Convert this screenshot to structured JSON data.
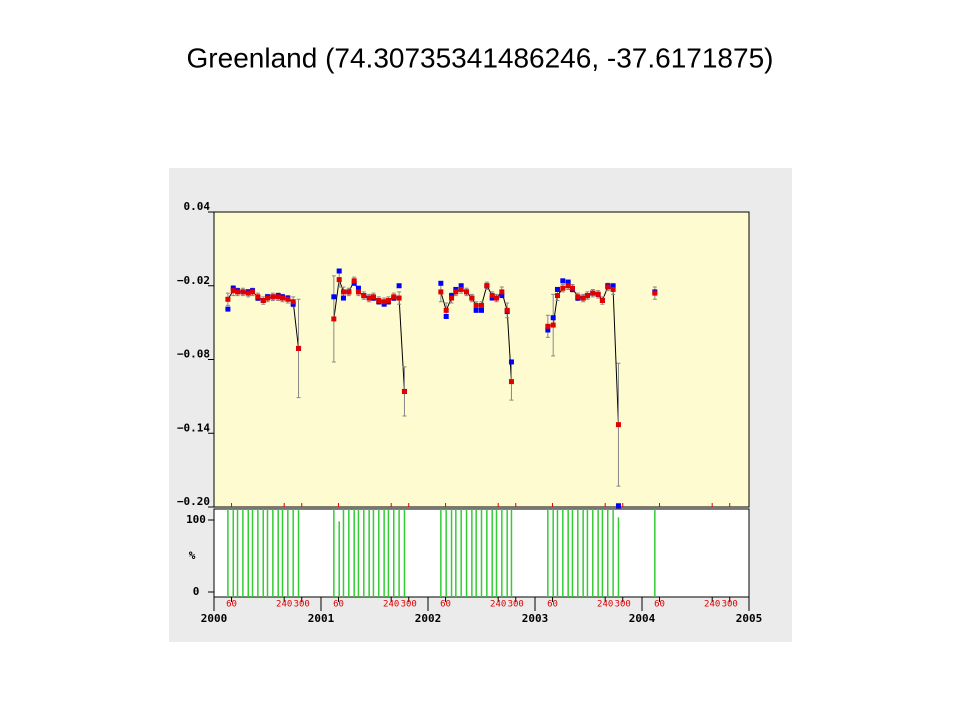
{
  "chart_data": [
    {
      "type": "line",
      "title": "Greenland (74.30735341486246, -37.6171875)",
      "xlim": [
        2000,
        2005
      ],
      "ylim": [
        -0.2,
        0.04
      ],
      "yticks": [
        {
          "value": -0.2,
          "label": "−0.20"
        },
        {
          "value": -0.14,
          "label": "−0.14"
        },
        {
          "value": -0.08,
          "label": "−0.08"
        },
        {
          "value": -0.02,
          "label": "−0.02"
        },
        0.04
      ],
      "series": [
        {
          "color": "#0000ff",
          "x": [
            2000.13,
            2000.18,
            2000.22,
            2000.27,
            2000.32,
            2000.36,
            2000.41,
            2000.46,
            2000.5,
            2000.55,
            2000.6,
            2000.64,
            2000.69,
            2000.74,
            2000.79,
            2001.12,
            2001.17,
            2001.21,
            2001.26,
            2001.31,
            2001.35,
            2001.4,
            2001.45,
            2001.49,
            2001.54,
            2001.59,
            2001.63,
            2001.68,
            2001.73,
            2001.78,
            2002.12,
            2002.17,
            2002.22,
            2002.26,
            2002.31,
            2002.36,
            2002.41,
            2002.45,
            2002.5,
            2002.55,
            2002.6,
            2002.64,
            2002.69,
            2002.74,
            2002.78,
            2003.12,
            2003.17,
            2003.21,
            2003.26,
            2003.31,
            2003.35,
            2003.4,
            2003.45,
            2003.49,
            2003.54,
            2003.59,
            2003.63,
            2003.68,
            2003.73,
            2003.78,
            2004.12
          ],
          "values": [
            -0.039,
            -0.022,
            -0.024,
            -0.025,
            -0.025,
            -0.024,
            -0.03,
            -0.032,
            -0.029,
            -0.029,
            -0.028,
            -0.029,
            -0.03,
            -0.035,
            -0.071,
            -0.029,
            -0.008,
            -0.03,
            -0.025,
            -0.018,
            -0.022,
            -0.028,
            -0.03,
            -0.03,
            -0.033,
            -0.035,
            -0.033,
            -0.03,
            -0.02,
            -0.106,
            -0.018,
            -0.045,
            -0.028,
            -0.023,
            -0.02,
            -0.025,
            -0.03,
            -0.04,
            -0.04,
            -0.02,
            -0.03,
            -0.03,
            -0.028,
            -0.041,
            -0.082,
            -0.056,
            -0.046,
            -0.023,
            -0.016,
            -0.017,
            -0.023,
            -0.03,
            -0.03,
            -0.028,
            -0.026,
            -0.027,
            -0.032,
            -0.02,
            -0.02,
            -0.199,
            -0.025
          ]
        },
        {
          "color": "#e00000",
          "line": true,
          "x": [
            2000.13,
            2000.18,
            2000.22,
            2000.27,
            2000.32,
            2000.36,
            2000.41,
            2000.46,
            2000.5,
            2000.55,
            2000.6,
            2000.64,
            2000.69,
            2000.74,
            2000.79,
            2000.95,
            2001.12,
            2001.17,
            2001.21,
            2001.26,
            2001.31,
            2001.35,
            2001.4,
            2001.45,
            2001.49,
            2001.54,
            2001.59,
            2001.63,
            2001.68,
            2001.73,
            2001.78,
            2001.95,
            2002.12,
            2002.17,
            2002.22,
            2002.26,
            2002.31,
            2002.36,
            2002.41,
            2002.45,
            2002.5,
            2002.55,
            2002.6,
            2002.64,
            2002.69,
            2002.74,
            2002.78,
            2002.95,
            2003.12,
            2003.17,
            2003.21,
            2003.26,
            2003.31,
            2003.35,
            2003.4,
            2003.45,
            2003.49,
            2003.54,
            2003.59,
            2003.63,
            2003.68,
            2003.73,
            2003.78,
            2003.95,
            2004.12
          ],
          "values": [
            -0.031,
            -0.024,
            -0.025,
            -0.025,
            -0.026,
            -0.025,
            -0.029,
            -0.032,
            -0.03,
            -0.029,
            -0.029,
            -0.03,
            -0.031,
            -0.033,
            -0.071,
            null,
            -0.047,
            -0.015,
            -0.025,
            -0.025,
            -0.016,
            -0.025,
            -0.028,
            -0.03,
            -0.029,
            -0.032,
            -0.033,
            -0.032,
            -0.029,
            -0.03,
            -0.106,
            null,
            -0.025,
            -0.04,
            -0.03,
            -0.025,
            -0.023,
            -0.025,
            -0.03,
            -0.036,
            -0.036,
            -0.02,
            -0.028,
            -0.03,
            -0.025,
            -0.04,
            -0.098,
            null,
            -0.053,
            -0.052,
            -0.028,
            -0.022,
            -0.02,
            -0.022,
            -0.029,
            -0.03,
            -0.028,
            -0.026,
            -0.027,
            -0.032,
            -0.021,
            -0.023,
            -0.133,
            null,
            -0.026
          ],
          "errors": [
            0.005,
            0.004,
            0.003,
            0.003,
            0.003,
            0.003,
            0.003,
            0.003,
            0.003,
            0.003,
            0.003,
            0.003,
            0.003,
            0.004,
            0.04,
            null,
            0.035,
            0.006,
            0.004,
            0.003,
            0.003,
            0.003,
            0.003,
            0.003,
            0.003,
            0.003,
            0.003,
            0.003,
            0.003,
            0.005,
            0.02,
            null,
            0.008,
            0.006,
            0.004,
            0.003,
            0.003,
            0.003,
            0.003,
            0.003,
            0.003,
            0.003,
            0.003,
            0.003,
            0.004,
            0.006,
            0.015,
            null,
            0.009,
            0.025,
            0.004,
            0.003,
            0.003,
            0.003,
            0.003,
            0.003,
            0.003,
            0.003,
            0.003,
            0.003,
            0.003,
            0.004,
            0.05,
            null,
            0.005
          ]
        }
      ]
    },
    {
      "type": "bar",
      "ylabel": "%",
      "xlim": [
        2000,
        2005
      ],
      "ylim": [
        0,
        100
      ],
      "yticks": [
        0,
        100
      ],
      "xticks": [
        2000,
        2001,
        2002,
        2003,
        2004,
        2005
      ],
      "xminor": [
        {
          "value": 2000.164,
          "label": "60"
        },
        {
          "value": 2000.656,
          "label": "240"
        },
        {
          "value": 2000.82,
          "label": "300"
        },
        {
          "value": 2001.164,
          "label": "60"
        },
        {
          "value": 2001.656,
          "label": "240"
        },
        {
          "value": 2001.82,
          "label": "300"
        },
        {
          "value": 2002.164,
          "label": "60"
        },
        {
          "value": 2002.656,
          "label": "240"
        },
        {
          "value": 2002.82,
          "label": "300"
        },
        {
          "value": 2003.164,
          "label": "60"
        },
        {
          "value": 2003.656,
          "label": "240"
        },
        {
          "value": 2003.82,
          "label": "300"
        },
        {
          "value": 2004.164,
          "label": "60"
        },
        {
          "value": 2004.656,
          "label": "240"
        },
        {
          "value": 2004.82,
          "label": "300"
        }
      ],
      "color": "#33cc33",
      "x": [
        2000.13,
        2000.18,
        2000.22,
        2000.27,
        2000.32,
        2000.36,
        2000.41,
        2000.46,
        2000.5,
        2000.55,
        2000.6,
        2000.64,
        2000.69,
        2000.74,
        2000.79,
        2001.12,
        2001.17,
        2001.21,
        2001.26,
        2001.31,
        2001.35,
        2001.4,
        2001.45,
        2001.49,
        2001.54,
        2001.59,
        2001.63,
        2001.68,
        2001.73,
        2001.78,
        2002.12,
        2002.17,
        2002.22,
        2002.26,
        2002.31,
        2002.36,
        2002.41,
        2002.45,
        2002.5,
        2002.55,
        2002.6,
        2002.64,
        2002.69,
        2002.74,
        2002.78,
        2003.12,
        2003.17,
        2003.21,
        2003.26,
        2003.31,
        2003.35,
        2003.4,
        2003.45,
        2003.49,
        2003.54,
        2003.59,
        2003.63,
        2003.68,
        2003.73,
        2003.78,
        2004.12
      ],
      "values": [
        100,
        100,
        100,
        100,
        100,
        100,
        100,
        100,
        100,
        100,
        100,
        100,
        100,
        100,
        100,
        100,
        85,
        100,
        100,
        100,
        100,
        100,
        100,
        100,
        100,
        100,
        100,
        100,
        100,
        100,
        100,
        100,
        100,
        100,
        100,
        100,
        100,
        100,
        100,
        100,
        100,
        100,
        100,
        100,
        100,
        100,
        100,
        100,
        100,
        100,
        100,
        100,
        100,
        100,
        100,
        100,
        100,
        100,
        100,
        90,
        100
      ]
    }
  ]
}
